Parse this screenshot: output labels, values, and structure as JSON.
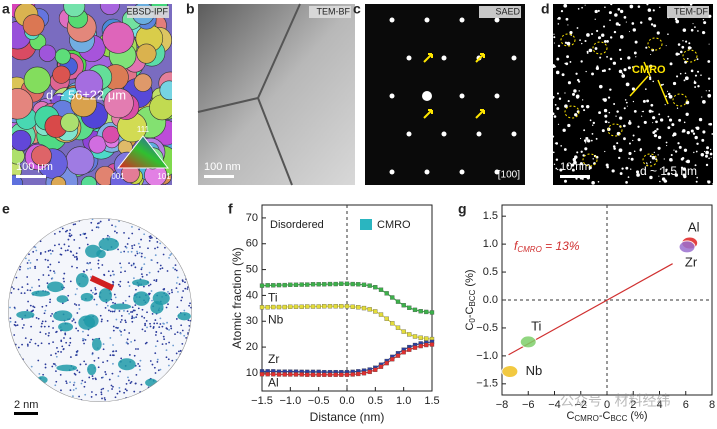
{
  "panels": {
    "a": {
      "label": "a",
      "tag": "EBSD-IPF",
      "size": "d ~ 56±22 μm",
      "scale": "100 μm",
      "ipf": [
        "111",
        "001",
        "101"
      ]
    },
    "b": {
      "label": "b",
      "tag": "TEM-BF",
      "scale": "100 nm"
    },
    "c": {
      "label": "c",
      "tag": "SAED",
      "zone": "[100]"
    },
    "d": {
      "label": "d",
      "tag": "TEM-DF",
      "callout": "CMRO",
      "scale": "10 nm",
      "size": "d ~ 1.5 nm"
    },
    "e": {
      "label": "e",
      "scale": "2 nm"
    },
    "f": {
      "label": "f"
    },
    "g": {
      "label": "g"
    }
  },
  "watermark": "公众号 · 材料经纬",
  "chart_data": [
    {
      "type": "line",
      "xlabel": "Distance (nm)",
      "ylabel": "Atomic fraction (%)",
      "annotation": "Disordered",
      "legend": {
        "name": "CMRO",
        "color": "#2ab5c0"
      },
      "x": [
        -1.5,
        -1.4,
        -1.3,
        -1.2,
        -1.1,
        -1.0,
        -0.9,
        -0.8,
        -0.7,
        -0.6,
        -0.5,
        -0.4,
        -0.3,
        -0.2,
        -0.1,
        0,
        0.1,
        0.2,
        0.3,
        0.4,
        0.5,
        0.6,
        0.7,
        0.8,
        0.9,
        1.0,
        1.1,
        1.2,
        1.3,
        1.4,
        1.5
      ],
      "series": [
        {
          "name": "Ti",
          "color": "#3cb04a",
          "values": [
            43.8,
            43.9,
            43.9,
            44,
            44,
            44.1,
            44.1,
            44.2,
            44.2,
            44.3,
            44.3,
            44.3,
            44.4,
            44.4,
            44.5,
            44.5,
            44.4,
            44.3,
            44.1,
            43.8,
            43.2,
            42.2,
            40.8,
            39.2,
            37.6,
            36.2,
            35.2,
            34.4,
            33.9,
            33.6,
            33.4
          ]
        },
        {
          "name": "Nb",
          "color": "#e3dc3a",
          "values": [
            35.4,
            35.4,
            35.5,
            35.5,
            35.5,
            35.6,
            35.6,
            35.6,
            35.7,
            35.7,
            35.7,
            35.8,
            35.8,
            35.8,
            35.8,
            35.8,
            35.6,
            35.4,
            35.1,
            34.6,
            33.8,
            32.6,
            31,
            29.2,
            27.5,
            26,
            24.9,
            24.1,
            23.6,
            23.3,
            23.1
          ]
        },
        {
          "name": "Zr",
          "color": "#2b3fa0",
          "values": [
            10.6,
            10.6,
            10.6,
            10.5,
            10.5,
            10.5,
            10.5,
            10.4,
            10.4,
            10.4,
            10.4,
            10.3,
            10.3,
            10.3,
            10.3,
            10.3,
            10.4,
            10.6,
            10.9,
            11.3,
            12,
            13.2,
            14.6,
            16.2,
            17.6,
            19,
            20,
            20.8,
            21.4,
            21.7,
            22
          ]
        },
        {
          "name": "Al",
          "color": "#e03030",
          "values": [
            9.5,
            9.5,
            9.5,
            9.4,
            9.4,
            9.4,
            9.4,
            9.4,
            9.3,
            9.3,
            9.3,
            9.3,
            9.3,
            9.3,
            9.3,
            9.3,
            9.4,
            9.6,
            9.9,
            10.4,
            11.2,
            12.4,
            13.8,
            15.3,
            16.7,
            18,
            19,
            19.8,
            20.4,
            20.8,
            21
          ]
        }
      ],
      "xlim": [
        -1.5,
        1.5
      ],
      "xticks": [
        {
          "value": -1.5,
          "label": "−1.5"
        },
        {
          "value": -1.0,
          "label": "−1.0"
        },
        {
          "value": -0.5,
          "label": "−0.5"
        },
        {
          "value": 0,
          "label": "0.0"
        },
        0.5,
        {
          "value": 1.0,
          "label": "1.0"
        },
        1.5
      ],
      "ylim": [
        3,
        75
      ],
      "yticks": [
        10,
        20,
        30,
        40,
        50,
        60,
        70
      ]
    },
    {
      "type": "scatter",
      "xlabel": [
        "C",
        "CMRO",
        "-C",
        "BCC",
        " (%)"
      ],
      "ylabel": [
        "C",
        "0",
        "-C",
        "BCC",
        " (%)"
      ],
      "annotation": [
        "f",
        "CMRO",
        " = 13%"
      ],
      "series": [
        {
          "name": "Al",
          "color": "#e02020",
          "x": [
            6.3
          ],
          "y": [
            1.02
          ]
        },
        {
          "name": "Zr",
          "color": "#9b6fd0",
          "x": [
            6.1
          ],
          "y": [
            0.95
          ]
        },
        {
          "name": "Ti",
          "color": "#7ed06a",
          "x": [
            -6.0
          ],
          "y": [
            -0.75
          ]
        },
        {
          "name": "Nb",
          "color": "#f0c020",
          "x": [
            -7.4
          ],
          "y": [
            -1.28
          ]
        }
      ],
      "fit": {
        "color": "#d03030",
        "x": [
          -7.5,
          5
        ],
        "y": [
          -0.98,
          0.65
        ]
      },
      "xlim": [
        -8,
        8
      ],
      "xticks": [
        {
          "value": -8,
          "label": "−8"
        },
        {
          "value": -6,
          "label": "−6"
        },
        {
          "value": -4,
          "label": "−4"
        },
        {
          "value": -2,
          "label": "−2"
        },
        0,
        2,
        4,
        6,
        8
      ],
      "ylim": [
        -1.7,
        1.7
      ],
      "yticks": [
        {
          "value": -1.5,
          "label": "−1.5"
        },
        {
          "value": -1.0,
          "label": "−1.0"
        },
        {
          "value": -0.5,
          "label": "−0.5"
        },
        {
          "value": 0,
          "label": "0.0"
        },
        0.5,
        {
          "value": 1.0,
          "label": "1.0"
        },
        1.5
      ]
    }
  ]
}
